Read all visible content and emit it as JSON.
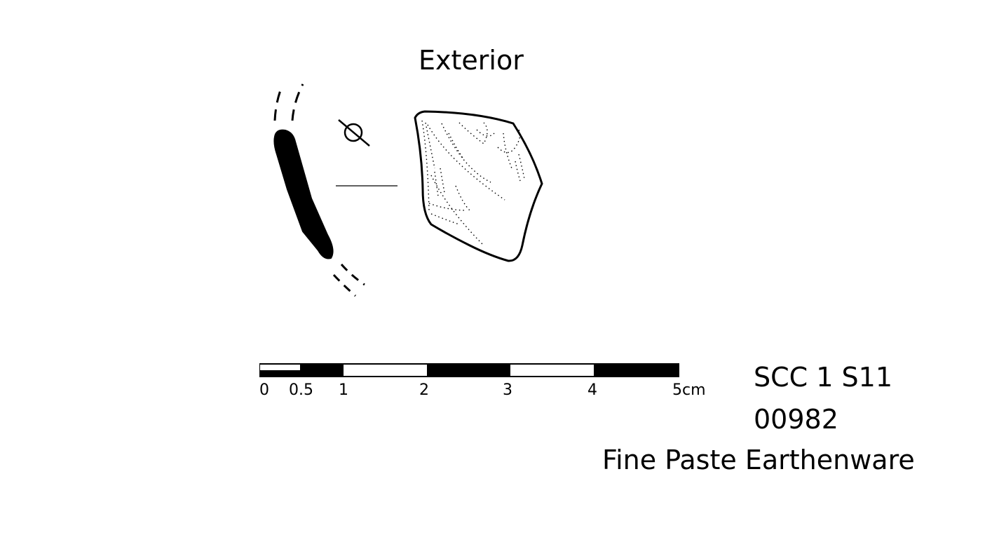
{
  "view_label": "Exterior",
  "scale_bar": {
    "ticks": [
      "0",
      "0.5",
      "1",
      "2",
      "3",
      "4",
      "5cm"
    ]
  },
  "catalog": {
    "context": "SCC 1 S11",
    "number": "00982",
    "ware": "Fine Paste Earthenware"
  },
  "symbols": {
    "diameter": "diameter-symbol-icon"
  }
}
